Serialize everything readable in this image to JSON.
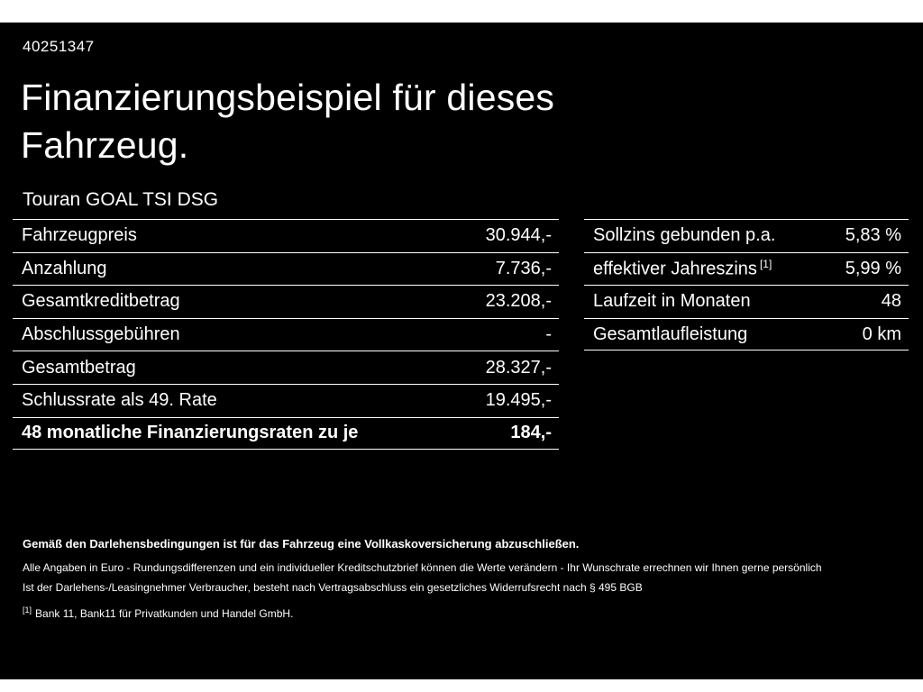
{
  "page": {
    "id_number": "40251347",
    "title_line1": "Finanzierungsbeispiel für dieses",
    "title_line2": "Fahrzeug.",
    "subtitle": "Touran GOAL TSI DSG"
  },
  "left_table": {
    "rows": [
      {
        "label": "Fahrzeugpreis",
        "value": "30.944,-"
      },
      {
        "label": "Anzahlung",
        "value": "7.736,-"
      },
      {
        "label": "Gesamtkreditbetrag",
        "value": "23.208,-"
      },
      {
        "label": "Abschlussgebühren",
        "value": "-"
      },
      {
        "label": "Gesamtbetrag",
        "value": "28.327,-"
      },
      {
        "label": "Schlussrate als 49. Rate",
        "value": "19.495,-"
      },
      {
        "label": "48 monatliche Finanzierungsraten zu je",
        "value": "184,-"
      }
    ]
  },
  "right_table": {
    "rows": [
      {
        "label": "Sollzins gebunden p.a.",
        "sup": "",
        "value": "5,83 %"
      },
      {
        "label": "effektiver Jahreszins",
        "sup": "[1]",
        "value": "5,99 %"
      },
      {
        "label": "Laufzeit in Monaten",
        "sup": "",
        "value": "48"
      },
      {
        "label": "Gesamtlaufleistung",
        "sup": "",
        "value": "0 km"
      }
    ]
  },
  "footer": {
    "bold_note": "Gemäß den Darlehensbedingungen ist für das Fahrzeug eine Vollkaskoversicherung abzuschließen.",
    "note1": "Alle Angaben in Euro - Rundungsdifferenzen und ein individueller Kreditschutzbrief können die Werte verändern - Ihr Wunschrate errechnen wir Ihnen gerne persönlich",
    "note2": "Ist der Darlehens-/Leasingnehmer Verbraucher, besteht nach Vertragsabschluss ein gesetzliches Widerrufsrecht nach § 495 BGB",
    "footnote_marker": "[1]",
    "footnote": "Bank 11, Bank11 für Privatkunden und Handel GmbH."
  },
  "colors": {
    "background": "#000000",
    "text": "#ffffff",
    "divider": "#ffffff"
  }
}
